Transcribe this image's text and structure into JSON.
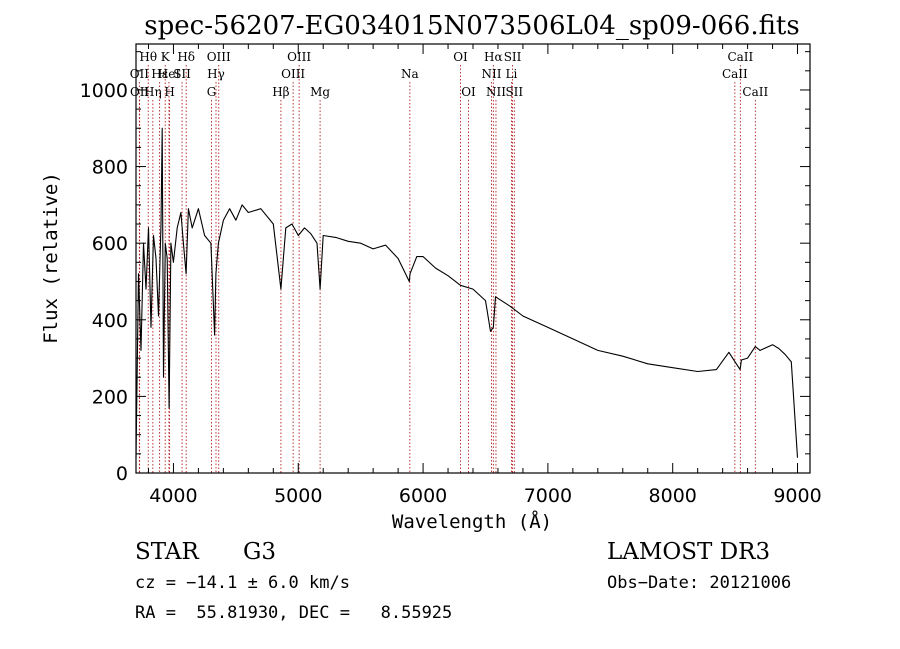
{
  "chart_data": {
    "type": "line",
    "title": "spec-56207-EG034015N073506L04_sp09-066.fits",
    "xlabel": "Wavelength (Å)",
    "ylabel": "Flux (relative)",
    "xlim": [
      3700,
      9100
    ],
    "ylim": [
      0,
      1120
    ],
    "xticks": [
      4000,
      5000,
      6000,
      7000,
      8000,
      9000
    ],
    "yticks": [
      0,
      200,
      400,
      600,
      800,
      1000
    ],
    "series": [
      {
        "name": "spectrum",
        "x": [
          3700,
          3720,
          3740,
          3760,
          3780,
          3800,
          3820,
          3840,
          3860,
          3880,
          3900,
          3910,
          3920,
          3935,
          3950,
          3965,
          3980,
          4000,
          4030,
          4060,
          4080,
          4101,
          4120,
          4150,
          4200,
          4250,
          4300,
          4330,
          4340,
          4360,
          4400,
          4450,
          4500,
          4550,
          4600,
          4700,
          4800,
          4861,
          4900,
          4950,
          5000,
          5050,
          5100,
          5150,
          5175,
          5200,
          5300,
          5400,
          5500,
          5600,
          5700,
          5800,
          5890,
          5895,
          5950,
          6000,
          6100,
          6200,
          6300,
          6400,
          6500,
          6540,
          6563,
          6580,
          6700,
          6800,
          7000,
          7200,
          7400,
          7600,
          7800,
          8000,
          8200,
          8350,
          8450,
          8500,
          8540,
          8550,
          8600,
          8662,
          8700,
          8800,
          8850,
          8900,
          8950,
          9000
        ],
        "y": [
          40,
          520,
          320,
          600,
          480,
          640,
          380,
          620,
          560,
          410,
          650,
          900,
          250,
          600,
          560,
          170,
          600,
          550,
          640,
          680,
          600,
          520,
          690,
          640,
          690,
          620,
          600,
          360,
          520,
          600,
          660,
          690,
          660,
          700,
          680,
          690,
          650,
          480,
          640,
          650,
          620,
          640,
          625,
          600,
          480,
          620,
          615,
          605,
          600,
          585,
          595,
          560,
          500,
          520,
          565,
          565,
          535,
          515,
          490,
          480,
          450,
          370,
          380,
          460,
          435,
          410,
          380,
          350,
          320,
          305,
          285,
          275,
          265,
          270,
          315,
          290,
          270,
          295,
          300,
          330,
          320,
          335,
          325,
          310,
          290,
          40
        ]
      }
    ],
    "lines": [
      {
        "label": "Hθ",
        "x": 3798,
        "row": 0
      },
      {
        "label": "OII",
        "x": 3727,
        "row": 1
      },
      {
        "label": "OII",
        "x": 3729,
        "row": 2
      },
      {
        "label": "Hε",
        "x": 3889,
        "row": 1
      },
      {
        "label": "Hη",
        "x": 3835,
        "row": 2
      },
      {
        "label": "K",
        "x": 3934,
        "row": 0
      },
      {
        "label": "HeI",
        "x": 3964,
        "row": 1
      },
      {
        "label": "H",
        "x": 3969,
        "row": 2
      },
      {
        "label": "SII",
        "x": 4069,
        "row": 1
      },
      {
        "label": "Hδ",
        "x": 4102,
        "row": 0
      },
      {
        "label": "OIII",
        "x": 4363,
        "row": 0
      },
      {
        "label": "Hγ",
        "x": 4341,
        "row": 1
      },
      {
        "label": "G",
        "x": 4305,
        "row": 2
      },
      {
        "label": "Hβ",
        "x": 4861,
        "row": 2
      },
      {
        "label": "OIII",
        "x": 5007,
        "row": 0
      },
      {
        "label": "OIII",
        "x": 4959,
        "row": 1
      },
      {
        "label": "Mg",
        "x": 5175,
        "row": 2
      },
      {
        "label": "Na",
        "x": 5894,
        "row": 1
      },
      {
        "label": "OI",
        "x": 6300,
        "row": 0
      },
      {
        "label": "OI",
        "x": 6364,
        "row": 2
      },
      {
        "label": "Hα",
        "x": 6563,
        "row": 0
      },
      {
        "label": "SII",
        "x": 6717,
        "row": 0
      },
      {
        "label": "NII",
        "x": 6548,
        "row": 1
      },
      {
        "label": "Li",
        "x": 6708,
        "row": 1
      },
      {
        "label": "NII",
        "x": 6584,
        "row": 2
      },
      {
        "label": "SII",
        "x": 6731,
        "row": 2
      },
      {
        "label": "CaII",
        "x": 8542,
        "row": 0
      },
      {
        "label": "CaII",
        "x": 8498,
        "row": 1
      },
      {
        "label": "CaII",
        "x": 8662,
        "row": 2
      }
    ]
  },
  "info": {
    "object_class": "STAR",
    "subclass": "G3",
    "survey": "LAMOST DR3",
    "redshift": "cz = −14.1 ± 6.0 km/s",
    "obs_date": "Obs−Date: 20121006",
    "coords": "RA =  55.81930, DEC =   8.55925"
  },
  "colors": {
    "line_marker": "#b22222",
    "spectrum": "#000000"
  }
}
